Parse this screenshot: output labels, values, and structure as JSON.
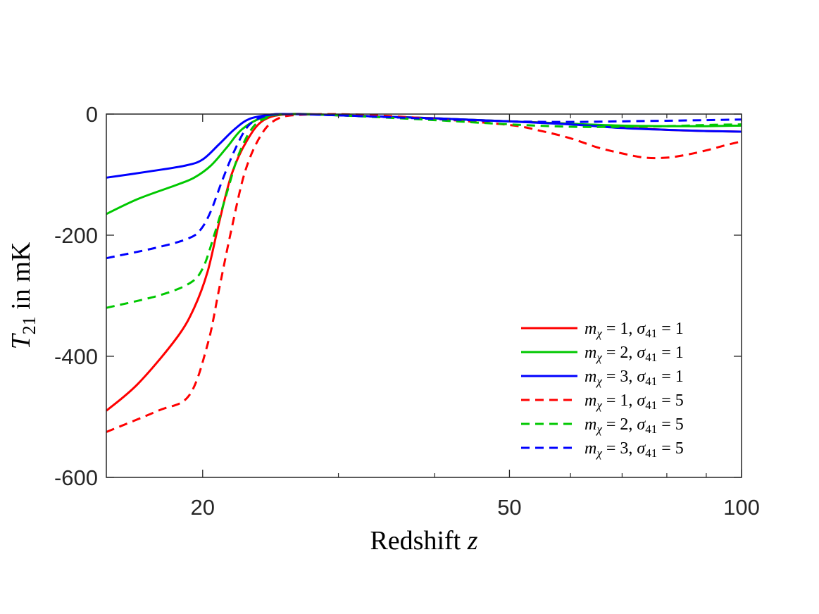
{
  "chart_data": {
    "type": "line",
    "title": "",
    "xlabel": "Redshift z",
    "ylabel": "T21 in mK",
    "xscale": "log",
    "xlim": [
      15,
      100
    ],
    "ylim": [
      -600,
      0
    ],
    "xticks": [
      {
        "value": 20,
        "label": "20"
      },
      {
        "value": 50,
        "label": "50"
      },
      {
        "value": 100,
        "label": "100"
      }
    ],
    "xminor": [
      30,
      40,
      60,
      70,
      80,
      90
    ],
    "yticks": [
      {
        "value": 0,
        "label": "0"
      },
      {
        "value": -200,
        "label": "-200"
      },
      {
        "value": -400,
        "label": "-400"
      },
      {
        "value": -600,
        "label": "-600"
      }
    ],
    "grid": false,
    "legend_position": "bottom-right",
    "series": [
      {
        "name": "mχ = 1, σ41 = 1",
        "color": "#ff0000",
        "dash": "solid",
        "x": [
          15,
          16.5,
          18.5,
          19.5,
          20.3,
          21.0,
          21.8,
          22.8,
          24.0,
          26,
          30,
          40,
          50,
          60,
          70,
          80,
          90,
          100
        ],
        "y": [
          -490,
          -445,
          -370,
          -320,
          -260,
          -180,
          -100,
          -45,
          -10,
          0,
          -2,
          -7,
          -12,
          -16,
          -22,
          -26,
          -28,
          -29
        ]
      },
      {
        "name": "mχ = 2, σ41 = 1",
        "color": "#00c800",
        "dash": "solid",
        "x": [
          15,
          16.5,
          18.5,
          19.5,
          20.5,
          21.5,
          22.5,
          24.0,
          26,
          30,
          40,
          50,
          60,
          70,
          80,
          90,
          100
        ],
        "y": [
          -165,
          -140,
          -117,
          -105,
          -85,
          -55,
          -25,
          -5,
          0,
          -2,
          -7,
          -12,
          -16,
          -19,
          -20,
          -20,
          -19
        ]
      },
      {
        "name": "mχ = 3, σ41 = 1",
        "color": "#0000ff",
        "dash": "solid",
        "x": [
          15,
          17,
          19,
          20,
          21,
          22,
          23,
          24.5,
          26,
          30,
          40,
          50,
          60,
          70,
          80,
          90,
          100
        ],
        "y": [
          -105,
          -95,
          -85,
          -75,
          -50,
          -25,
          -8,
          -1,
          0,
          -2,
          -7,
          -12,
          -17,
          -23,
          -26,
          -28,
          -29
        ]
      },
      {
        "name": "mχ = 1, σ41 = 5",
        "color": "#ff0000",
        "dash": "dashed",
        "x": [
          15,
          17.5,
          19.2,
          20.3,
          21.0,
          21.8,
          22.7,
          23.8,
          25,
          27,
          32,
          40,
          50,
          55,
          60,
          65,
          70,
          75,
          80,
          85,
          90,
          95,
          100
        ],
        "y": [
          -525,
          -490,
          -465,
          -380,
          -290,
          -190,
          -95,
          -35,
          -8,
          -1,
          -1,
          -8,
          -18,
          -28,
          -40,
          -55,
          -65,
          -72,
          -72,
          -67,
          -60,
          -52,
          -45
        ]
      },
      {
        "name": "mχ = 2, σ41 = 5",
        "color": "#00c800",
        "dash": "dashed",
        "x": [
          15,
          17.5,
          19.2,
          20.0,
          20.7,
          21.5,
          22.3,
          23.3,
          24.5,
          26,
          30,
          40,
          50,
          60,
          70,
          80,
          90,
          100
        ],
        "y": [
          -320,
          -300,
          -280,
          -255,
          -200,
          -130,
          -65,
          -20,
          -4,
          0,
          -2,
          -10,
          -17,
          -21,
          -21,
          -20,
          -18,
          -17
        ]
      },
      {
        "name": "mχ = 3, σ41 = 5",
        "color": "#0000ff",
        "dash": "dashed",
        "x": [
          15,
          17.5,
          19.2,
          19.9,
          20.5,
          21.2,
          22.0,
          22.9,
          24.0,
          25.5,
          30,
          40,
          50,
          60,
          70,
          80,
          90,
          100
        ],
        "y": [
          -238,
          -220,
          -205,
          -190,
          -160,
          -110,
          -60,
          -20,
          -4,
          0,
          -2,
          -8,
          -12,
          -13,
          -12,
          -11,
          -10,
          -9
        ]
      }
    ],
    "legend_labels": [
      {
        "m": "1",
        "s": "1"
      },
      {
        "m": "2",
        "s": "1"
      },
      {
        "m": "3",
        "s": "1"
      },
      {
        "m": "1",
        "s": "5"
      },
      {
        "m": "2",
        "s": "5"
      },
      {
        "m": "3",
        "s": "5"
      }
    ]
  }
}
